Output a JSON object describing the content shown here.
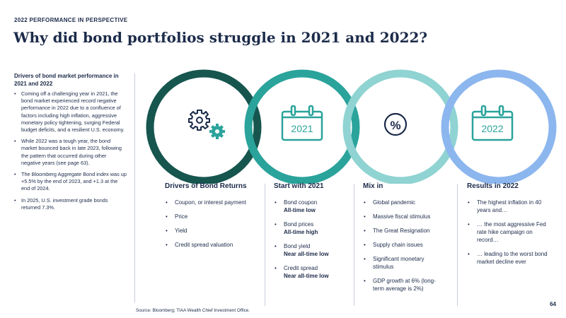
{
  "header": {
    "eyebrow": "2022 PERFORMANCE IN PERSPECTIVE",
    "title": "Why did bond portfolios struggle in 2021 and 2022?"
  },
  "sidebar": {
    "heading": "Drivers of bond market performance in 2021 and 2022",
    "bullets": [
      "Coming off a challenging year in 2021, the bond market experienced record negative performance in 2022 due to a confluence of factors including high inflation, aggressive monetary policy tightening, surging Federal budget deficits, and a resilient U.S. economy.",
      "While 2022 was a tough year, the bond market bounced back in late 2023, following the pattern that occurred during other negative years (see page 63).",
      "The Bloomberg Aggregate Bond index was up +5.5% by the end of 2023, and +1.3 at the end of 2024.",
      "In 2025, U.S. investment grade bonds returned 7.3%."
    ]
  },
  "rings": {
    "colors": [
      "#16564f",
      "#2aa39b",
      "#8fd3d2",
      "#8cb6ee"
    ],
    "icons": [
      "gears-icon",
      "calendar-icon",
      "percent-icon",
      "calendar-icon"
    ],
    "calendar_labels": {
      "start": "2021",
      "results": "2022"
    },
    "percent_symbol": "%"
  },
  "columns": {
    "drivers": {
      "heading": "Drivers of Bond Returns",
      "items": [
        "Coupon, or interest payment",
        "Price",
        "Yield",
        "Credit spread valuation"
      ]
    },
    "start": {
      "heading": "Start with 2021",
      "items": [
        {
          "label": "Bond coupon",
          "value": "All-time low"
        },
        {
          "label": "Bond prices",
          "value": "All-time high"
        },
        {
          "label": "Bond yield",
          "value": "Near all-time low"
        },
        {
          "label": "Credit spread",
          "value": "Near all-time low"
        }
      ]
    },
    "mix": {
      "heading": "Mix in",
      "items": [
        "Global pandemic",
        "Massive fiscal stimulus",
        "The Great Resignation",
        "Supply chain issues",
        "Significant monetary stimulus",
        "GDP growth at 6% (long-term average is 2%)"
      ]
    },
    "results": {
      "heading": "Results in 2022",
      "items": [
        "The highest inflation in 40 years and…",
        "… the most aggressive Fed rate hike campaign on record…",
        "… leading to the worst bond market decline ever"
      ]
    }
  },
  "footer": {
    "source": "Source: Bloomberg; TIAA Wealth Chief Investment Office.",
    "page_number": "64"
  }
}
